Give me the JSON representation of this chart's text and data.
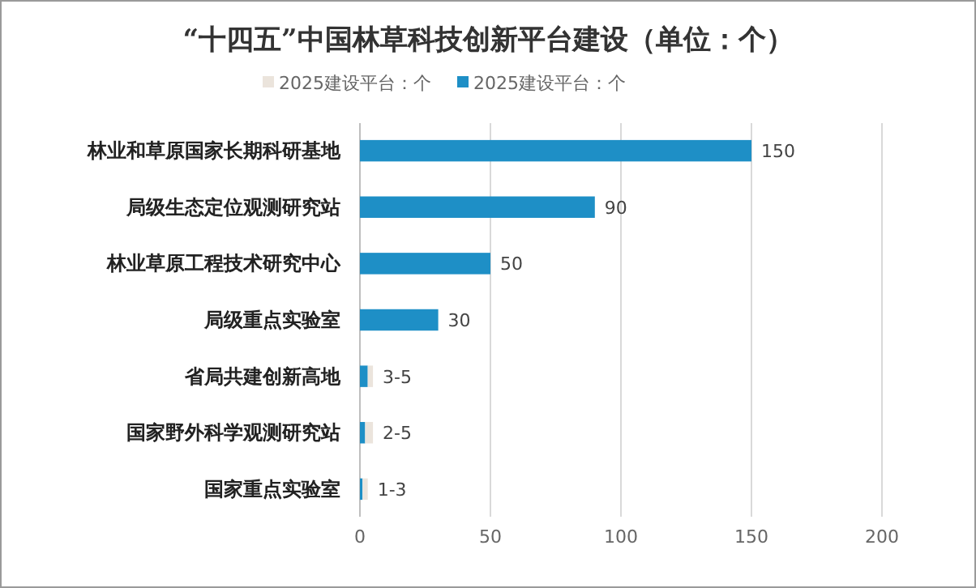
{
  "chart_data": {
    "type": "bar",
    "orientation": "horizontal",
    "stacked": true,
    "title": "“十四五”中国林草科技创新平台建设（单位：个）",
    "categories": [
      "林业和草原国家长期科研基地",
      "局级生态定位观测研究站",
      "林业草原工程技术研究中心",
      "局级重点实验室",
      "省局共建创新高地",
      "国家野外科学观测研究站",
      "国家重点实验室"
    ],
    "series": [
      {
        "name": "2025建设平台：个",
        "color": "#1e8fc6",
        "values": [
          150,
          90,
          50,
          30,
          3,
          2,
          1
        ],
        "value_labels": [
          "150",
          "90",
          "50",
          "30",
          null,
          null,
          null
        ]
      },
      {
        "name": "2025建设平台：个",
        "color": "#ebe4dc",
        "values": [
          null,
          null,
          null,
          null,
          2,
          3,
          2
        ],
        "value_labels": [
          null,
          null,
          null,
          null,
          "3-5",
          "2-5",
          "1-3"
        ]
      }
    ],
    "xlim": [
      0,
      200
    ],
    "xticks": [
      0,
      50,
      100,
      150,
      200
    ],
    "grid": "x",
    "legend": "top"
  }
}
